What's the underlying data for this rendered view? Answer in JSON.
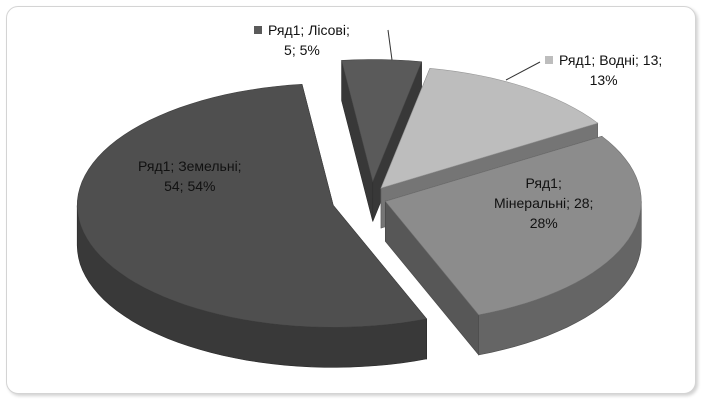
{
  "chart_data": {
    "type": "pie",
    "style": "3d-exploded",
    "title": "",
    "series_name": "Ряд1",
    "slices": [
      {
        "name": "Лісові",
        "value": 5,
        "percent": "5%",
        "color": "#5a5a5a",
        "label_line1": "Ряд1; Лісові;",
        "label_line2": "5; 5%"
      },
      {
        "name": "Водні",
        "value": 13,
        "percent": "13%",
        "color": "#bdbdbd",
        "label_line1": "Ряд1; Водні; 13;",
        "label_line2": "13%"
      },
      {
        "name": "Мінеральні",
        "value": 28,
        "percent": "28%",
        "color": "#8c8c8c",
        "label_line1": "Ряд1;",
        "label_line2": "Мінеральні; 28;",
        "label_line3": "28%"
      },
      {
        "name": "Земельні",
        "value": 54,
        "percent": "54%",
        "color": "#4f4f4f",
        "label_line1": "Ряд1; Земельні;",
        "label_line2": "54; 54%"
      }
    ]
  }
}
